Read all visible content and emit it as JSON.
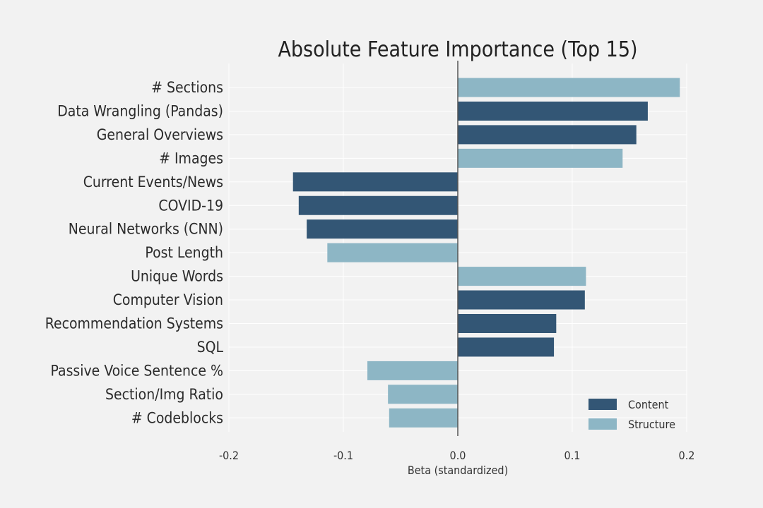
{
  "chart_data": {
    "type": "bar",
    "orientation": "horizontal",
    "title": "Absolute Feature Importance (Top 15)",
    "xlabel": "Beta (standardized)",
    "ylabel": "",
    "xlim": [
      -0.2,
      0.2
    ],
    "xticks": [
      -0.2,
      -0.1,
      0.0,
      0.1,
      0.2
    ],
    "xtick_labels": [
      "-0.2",
      "-0.1",
      "0.0",
      "0.1",
      "0.2"
    ],
    "grid": true,
    "legend_position": "bottom-right",
    "categories": [
      "# Sections",
      "Data Wrangling (Pandas)",
      "General Overviews",
      "# Images",
      "Current Events/News",
      "COVID-19",
      "Neural Networks (CNN)",
      "Post Length",
      "Unique Words",
      "Computer Vision",
      "Recommendation Systems",
      "SQL",
      "Passive Voice Sentence %",
      "Section/Img Ratio",
      "# Codeblocks"
    ],
    "values": [
      0.194,
      0.166,
      0.156,
      0.144,
      -0.144,
      -0.139,
      -0.132,
      -0.114,
      0.112,
      0.111,
      0.086,
      0.084,
      -0.079,
      -0.061,
      -0.06
    ],
    "groups": [
      "Structure",
      "Content",
      "Content",
      "Structure",
      "Content",
      "Content",
      "Content",
      "Structure",
      "Structure",
      "Content",
      "Content",
      "Content",
      "Structure",
      "Structure",
      "Structure"
    ],
    "legend": [
      {
        "name": "Content",
        "color": "#335675"
      },
      {
        "name": "Structure",
        "color": "#8db6c5"
      }
    ]
  }
}
